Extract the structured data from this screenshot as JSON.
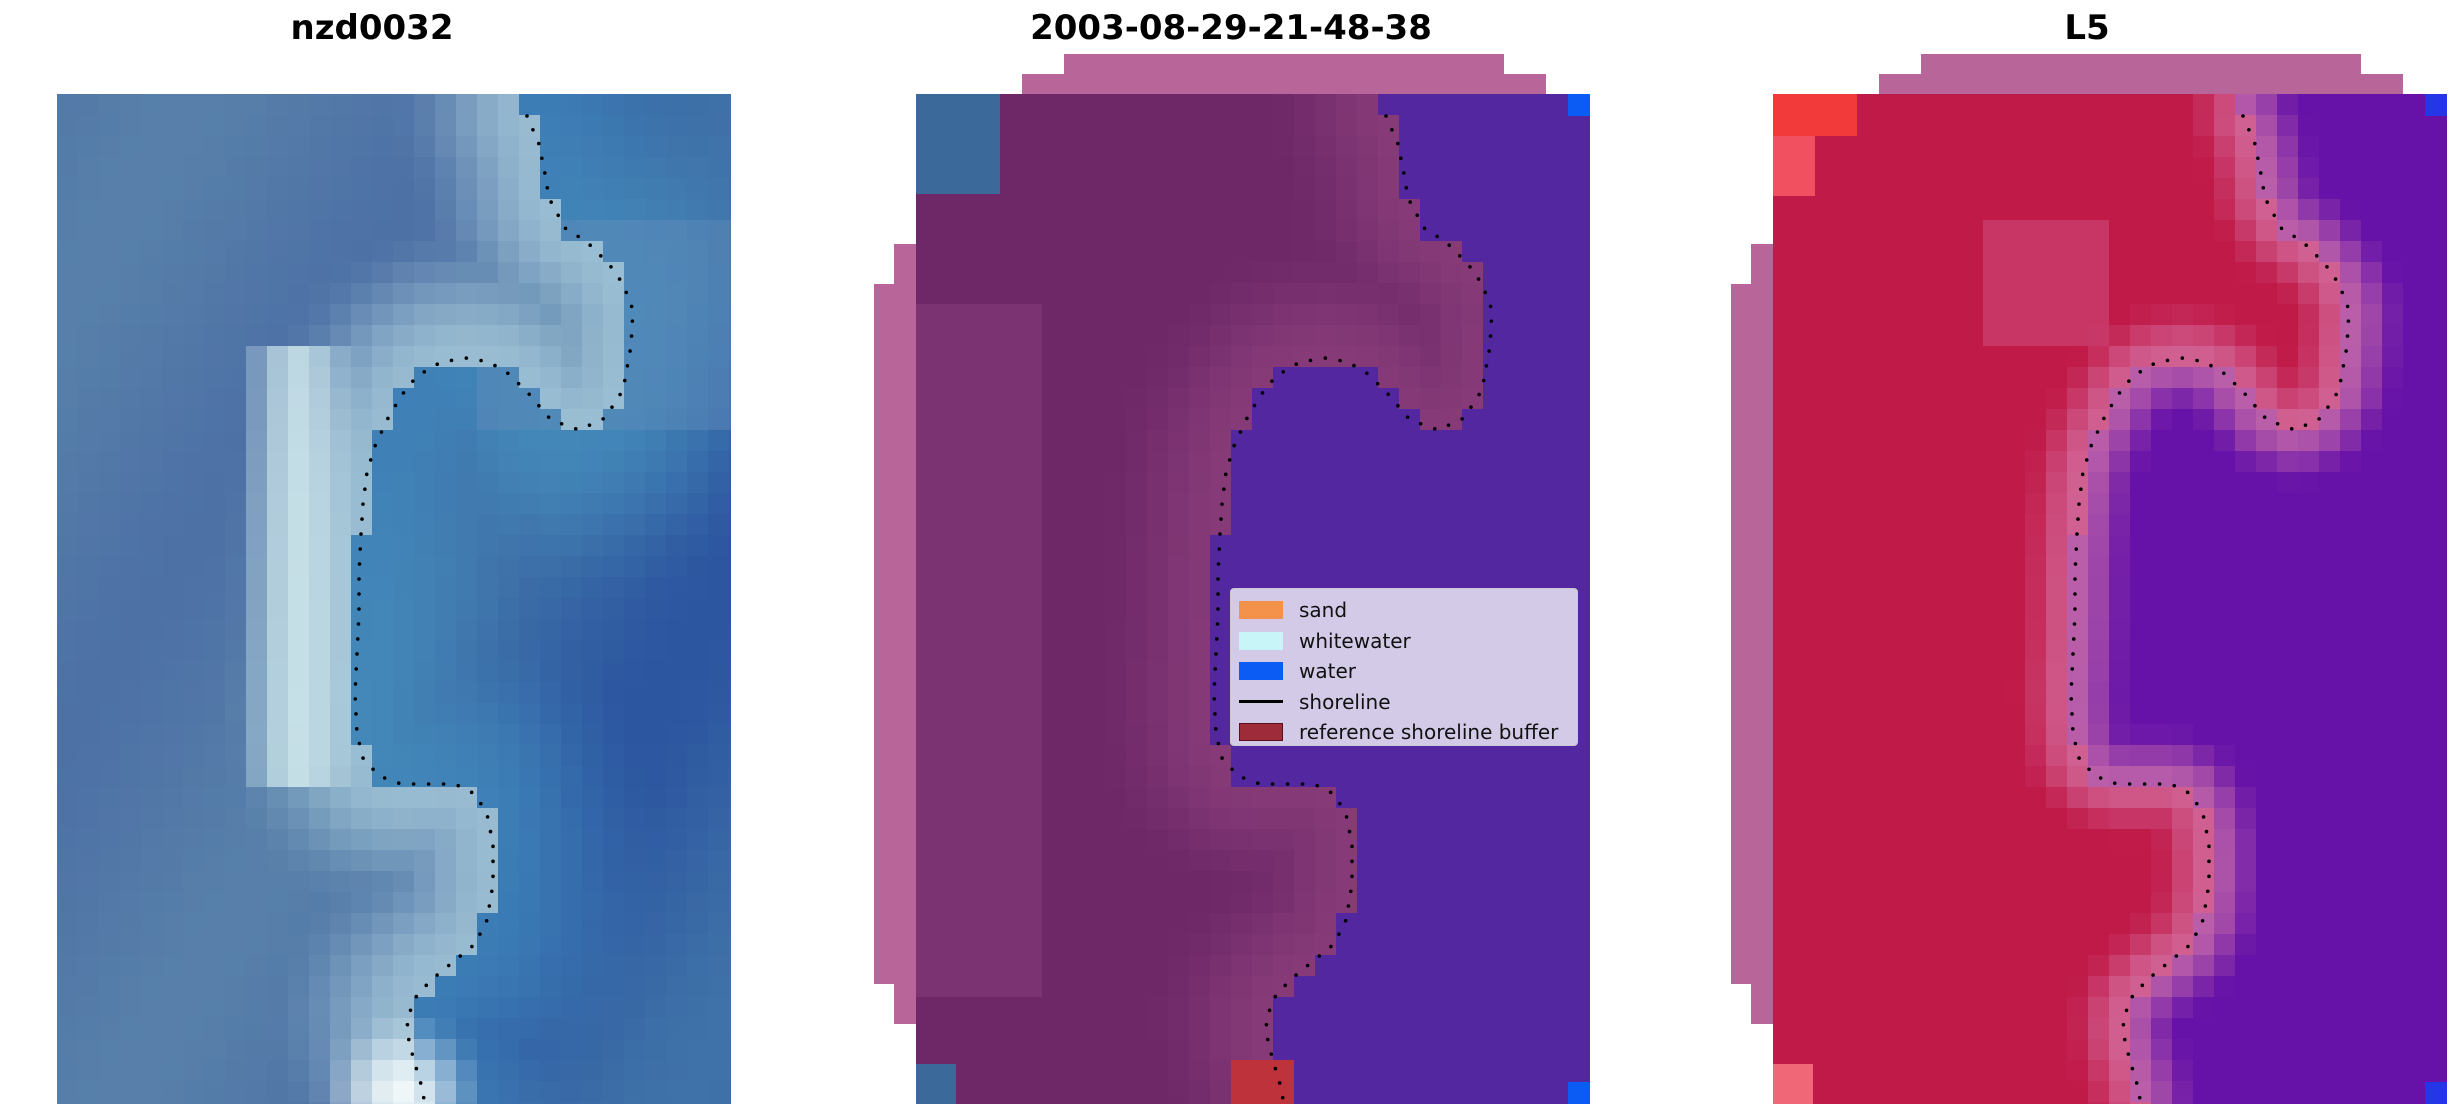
{
  "panels": [
    {
      "title": "nzd0032"
    },
    {
      "title": "2003-08-29-21-48-38"
    },
    {
      "title": "L5"
    }
  ],
  "legend": {
    "items": [
      {
        "label": "sand",
        "color": "#f4914a",
        "kind": "patch"
      },
      {
        "label": "whitewater",
        "color": "#c8f6f8",
        "kind": "patch"
      },
      {
        "label": "water",
        "color": "#0b5cf5",
        "kind": "patch"
      },
      {
        "label": "shoreline",
        "color": "#000000",
        "kind": "line"
      },
      {
        "label": "reference shoreline buffer",
        "color": "#9d2b3a",
        "kind": "patch"
      }
    ]
  },
  "colors": {
    "rgb_water": "#3f72a8",
    "rgb_light": "#eef6f8",
    "class_sand_overlay": "#6e2868",
    "class_water_overlay": "#5227a0",
    "buffer_pink": "#b8659a",
    "index_land": "#c01a48",
    "index_water": "#6612a8",
    "shoreline_dots": "#000000"
  }
}
